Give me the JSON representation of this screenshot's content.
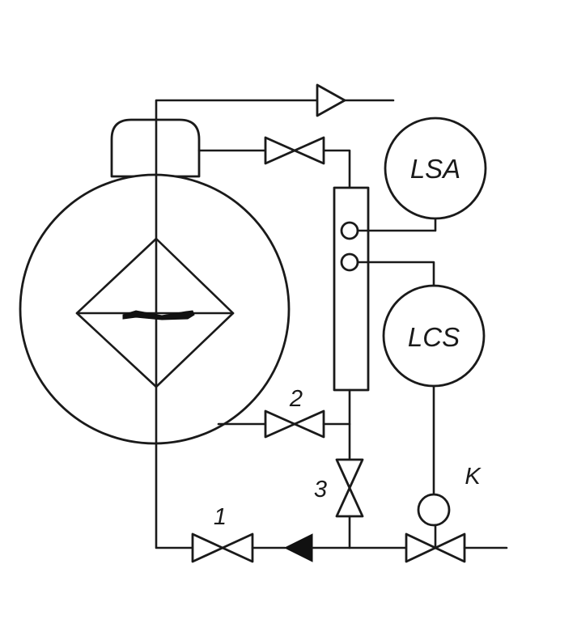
{
  "instruments": {
    "lsa": {
      "tag": "LSA"
    },
    "lcs": {
      "tag": "LCS"
    }
  },
  "valves": {
    "v1": {
      "label": "1"
    },
    "v2": {
      "label": "2"
    },
    "v3": {
      "label": "3"
    },
    "control": {
      "label": "K"
    }
  },
  "colors": {
    "line": "#1a1a1a",
    "background": "#ffffff"
  }
}
